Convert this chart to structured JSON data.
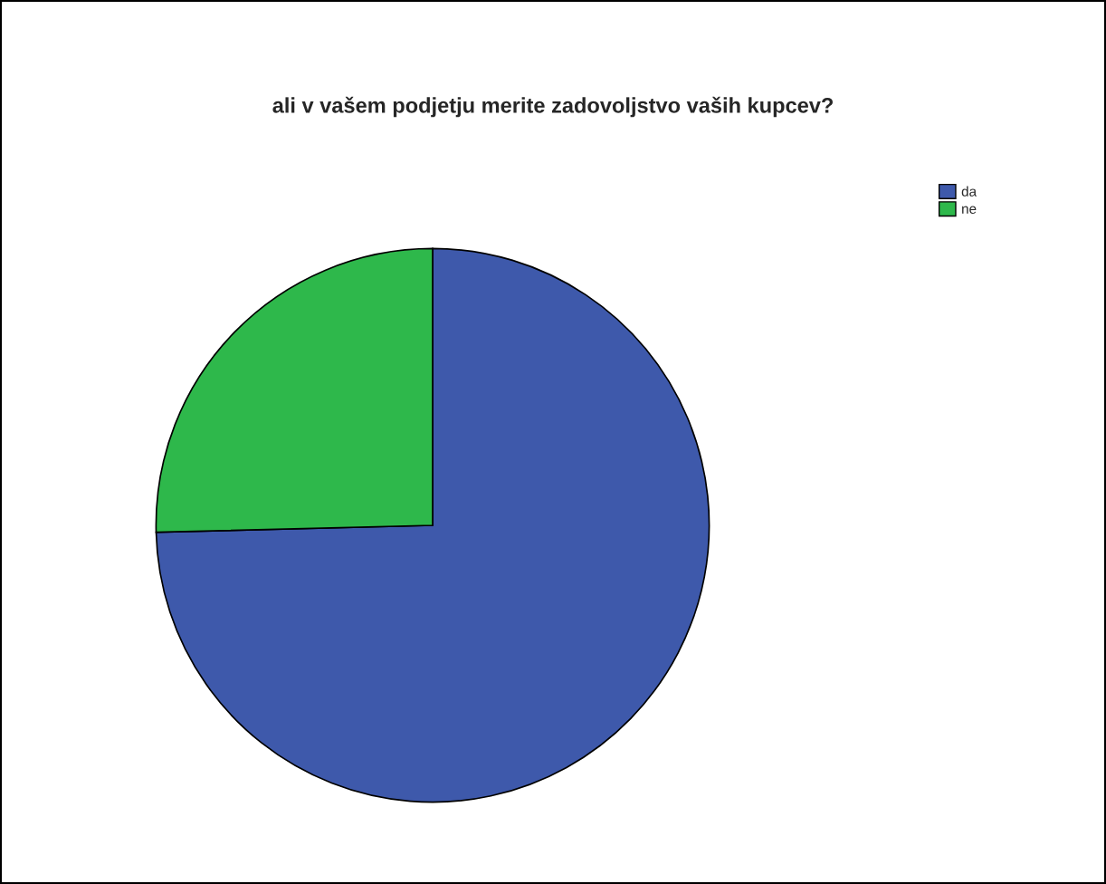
{
  "chart_data": {
    "type": "pie",
    "title": "ali v vašem podjetju merite zadovoljstvo vaših kupcev?",
    "categories": [
      "da",
      "ne"
    ],
    "values": [
      74.6,
      25.4
    ],
    "colors": [
      "#3e59ab",
      "#2eb84b"
    ],
    "legend": "top right"
  }
}
